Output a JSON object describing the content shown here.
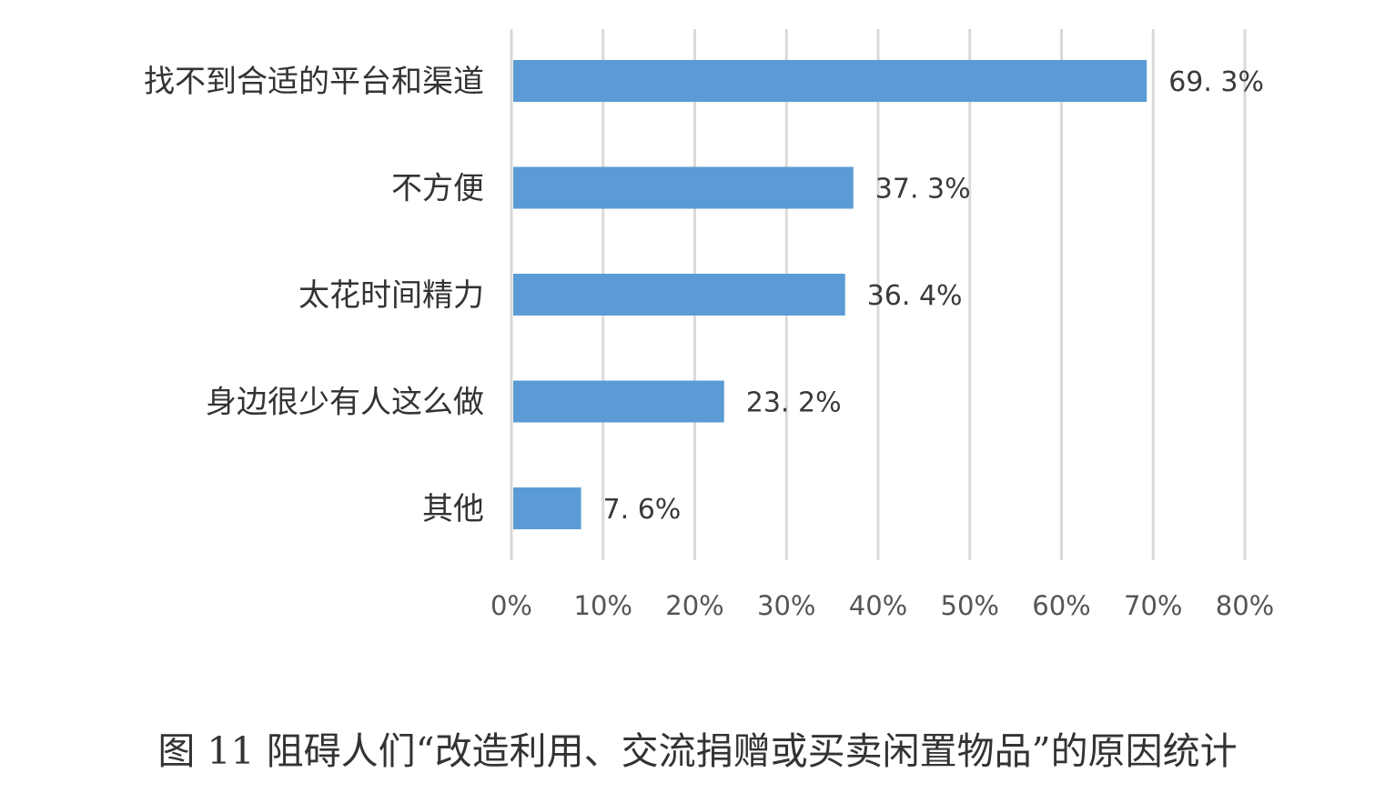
{
  "caption": "图 11 阻碍人们“改造利用、交流捐赠或买卖闲置物品”的原因统计",
  "chart_data": {
    "type": "bar",
    "orientation": "horizontal",
    "categories": [
      "找不到合适的平台和渠道",
      "不方便",
      "太花时间精力",
      "身边很少有人这么做",
      "其他"
    ],
    "values": [
      69.3,
      37.3,
      36.4,
      23.2,
      7.6
    ],
    "value_labels": [
      "69. 3%",
      "37. 3%",
      "36. 4%",
      "23. 2%",
      "7. 6%"
    ],
    "x_ticks": [
      "0%",
      "10%",
      "20%",
      "30%",
      "40%",
      "50%",
      "60%",
      "70%",
      "80%"
    ],
    "xlim": [
      0,
      80
    ],
    "grid": true,
    "legend": false,
    "colors": {
      "bar": "#5b9bd5",
      "grid": "#d9d9d9"
    }
  }
}
